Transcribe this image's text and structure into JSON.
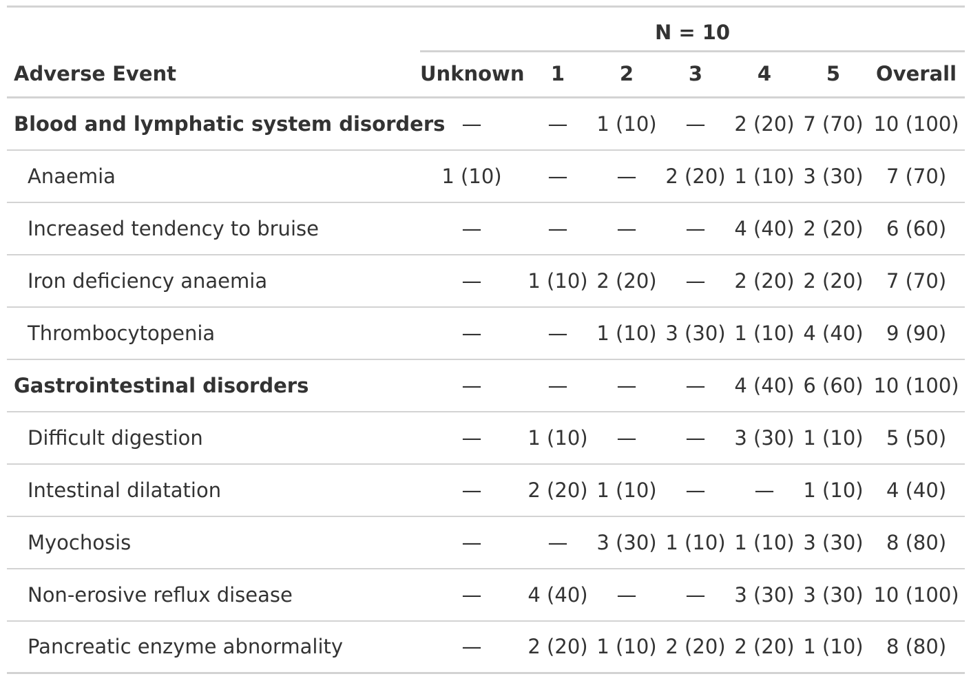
{
  "table": {
    "spanner_label": "N = 10",
    "columns": [
      "Adverse Event",
      "Unknown",
      "1",
      "2",
      "3",
      "4",
      "5",
      "Overall"
    ],
    "rows": [
      {
        "type": "group",
        "label": "Blood and lymphatic system disorders",
        "values": [
          "—",
          "—",
          "1 (10)",
          "—",
          "2 (20)",
          "7 (70)",
          "10 (100)"
        ]
      },
      {
        "type": "item",
        "label": "Anaemia",
        "values": [
          "1 (10)",
          "—",
          "—",
          "2 (20)",
          "1 (10)",
          "3 (30)",
          "7 (70)"
        ]
      },
      {
        "type": "item",
        "label": "Increased tendency to bruise",
        "values": [
          "—",
          "—",
          "—",
          "—",
          "4 (40)",
          "2 (20)",
          "6 (60)"
        ]
      },
      {
        "type": "item",
        "label": "Iron deficiency anaemia",
        "values": [
          "—",
          "1 (10)",
          "2 (20)",
          "—",
          "2 (20)",
          "2 (20)",
          "7 (70)"
        ]
      },
      {
        "type": "item",
        "label": "Thrombocytopenia",
        "values": [
          "—",
          "—",
          "1 (10)",
          "3 (30)",
          "1 (10)",
          "4 (40)",
          "9 (90)"
        ]
      },
      {
        "type": "group",
        "label": "Gastrointestinal disorders",
        "values": [
          "—",
          "—",
          "—",
          "—",
          "4 (40)",
          "6 (60)",
          "10 (100)"
        ]
      },
      {
        "type": "item",
        "label": "Difficult digestion",
        "values": [
          "—",
          "1 (10)",
          "—",
          "—",
          "3 (30)",
          "1 (10)",
          "5 (50)"
        ]
      },
      {
        "type": "item",
        "label": "Intestinal dilatation",
        "values": [
          "—",
          "2 (20)",
          "1 (10)",
          "—",
          "—",
          "1 (10)",
          "4 (40)"
        ]
      },
      {
        "type": "item",
        "label": "Myochosis",
        "values": [
          "—",
          "—",
          "3 (30)",
          "1 (10)",
          "1 (10)",
          "3 (30)",
          "8 (80)"
        ]
      },
      {
        "type": "item",
        "label": "Non-erosive reflux disease",
        "values": [
          "—",
          "4 (40)",
          "—",
          "—",
          "3 (30)",
          "3 (30)",
          "10 (100)"
        ]
      },
      {
        "type": "item",
        "label": "Pancreatic enzyme abnormality",
        "values": [
          "—",
          "2 (20)",
          "1 (10)",
          "2 (20)",
          "2 (20)",
          "1 (10)",
          "8 (80)"
        ]
      }
    ]
  },
  "colors": {
    "text": "#333333",
    "rule": "#d3d3d3"
  }
}
